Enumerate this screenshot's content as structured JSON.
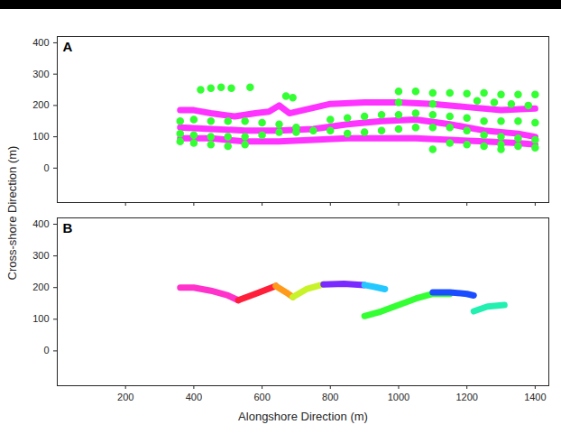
{
  "chart_data": [
    {
      "type": "line",
      "title": "A",
      "tick_labels": "y",
      "ylabel": "Cross-shore Direction (m)",
      "xlim": [
        0,
        1440
      ],
      "ylim": [
        -110,
        420
      ],
      "xticks": [
        200,
        400,
        600,
        800,
        1000,
        1200,
        1400
      ],
      "yticks": [
        0,
        100,
        200,
        300,
        400
      ],
      "grid": false,
      "series": [
        {
          "type": "line",
          "color": "#ff33ff",
          "line_style": "solid",
          "x": [
            360,
            400,
            450,
            520,
            580,
            620,
            650,
            680,
            720,
            800,
            900,
            1000,
            1100,
            1200,
            1300,
            1400
          ],
          "values": [
            185,
            185,
            175,
            165,
            175,
            180,
            200,
            175,
            185,
            205,
            210,
            210,
            205,
            195,
            185,
            190
          ]
        },
        {
          "type": "line",
          "color": "#ff33ff",
          "line_style": "solid",
          "x": [
            360,
            450,
            550,
            650,
            750,
            850,
            950,
            1050,
            1150,
            1250,
            1350,
            1400
          ],
          "values": [
            130,
            125,
            120,
            120,
            125,
            140,
            150,
            155,
            140,
            120,
            110,
            100
          ]
        },
        {
          "type": "line",
          "color": "#ff33ff",
          "line_style": "solid",
          "x": [
            360,
            450,
            550,
            650,
            750,
            850,
            950,
            1050,
            1150,
            1250,
            1350,
            1400
          ],
          "values": [
            95,
            95,
            85,
            85,
            90,
            95,
            95,
            95,
            90,
            85,
            80,
            75
          ]
        },
        {
          "type": "scatter",
          "color": "#33ff33",
          "marker": "circle",
          "x": [
            420,
            450,
            480,
            510,
            565,
            670,
            690,
            1000,
            1050,
            1100,
            1150,
            1200,
            1250,
            1300,
            1350,
            1400,
            1000,
            1100,
            1230,
            1280,
            1330,
            1380,
            360,
            400,
            450,
            500,
            550,
            600,
            650,
            700,
            800,
            850,
            900,
            950,
            1000,
            1050,
            1100,
            1150,
            1200,
            1250,
            1300,
            1350,
            1400,
            360,
            400,
            450,
            500,
            550,
            600,
            650,
            700,
            750,
            800,
            850,
            900,
            950,
            1000,
            1050,
            1100,
            1150,
            1200,
            1250,
            1300,
            1350,
            1400,
            360,
            400,
            450,
            500,
            550,
            1150,
            1200,
            1250,
            1300,
            1350,
            1400,
            1100,
            1300
          ],
          "values": [
            250,
            255,
            258,
            255,
            258,
            230,
            225,
            245,
            245,
            240,
            240,
            238,
            240,
            235,
            235,
            235,
            210,
            205,
            215,
            210,
            205,
            200,
            150,
            155,
            150,
            150,
            150,
            145,
            140,
            130,
            155,
            160,
            165,
            170,
            170,
            175,
            170,
            165,
            160,
            150,
            150,
            150,
            145,
            110,
            105,
            100,
            100,
            100,
            105,
            115,
            115,
            120,
            120,
            110,
            115,
            120,
            125,
            130,
            130,
            130,
            120,
            105,
            100,
            95,
            90,
            85,
            80,
            75,
            70,
            75,
            80,
            75,
            70,
            75,
            70,
            65,
            60,
            60
          ]
        }
      ]
    },
    {
      "type": "line",
      "title": "B",
      "xlabel": "Alongshore Direction (m)",
      "xlim": [
        0,
        1440
      ],
      "ylim": [
        -110,
        420
      ],
      "xticks": [
        200,
        400,
        600,
        800,
        1000,
        1200,
        1400
      ],
      "yticks": [
        0,
        100,
        200,
        300,
        400
      ],
      "grid": false,
      "series": [
        {
          "type": "line",
          "color": "#ff33cc",
          "x": [
            360,
            400,
            450,
            500,
            530
          ],
          "values": [
            200,
            200,
            190,
            175,
            160
          ]
        },
        {
          "type": "line",
          "color": "#ff1f3a",
          "x": [
            530,
            580,
            640
          ],
          "values": [
            160,
            180,
            205
          ]
        },
        {
          "type": "line",
          "color": "#ff9a1a",
          "x": [
            640,
            670,
            690
          ],
          "values": [
            205,
            185,
            170
          ]
        },
        {
          "type": "line",
          "color": "#c8f22a",
          "x": [
            690,
            730,
            780
          ],
          "values": [
            170,
            195,
            210
          ]
        },
        {
          "type": "line",
          "color": "#7a2aff",
          "x": [
            780,
            840,
            900
          ],
          "values": [
            210,
            212,
            208
          ]
        },
        {
          "type": "line",
          "color": "#22c8ff",
          "x": [
            900,
            930,
            960
          ],
          "values": [
            208,
            202,
            195
          ]
        },
        {
          "type": "line",
          "color": "#33ff33",
          "x": [
            900,
            950,
            1000,
            1050,
            1100,
            1150
          ],
          "values": [
            110,
            125,
            145,
            165,
            180,
            180
          ]
        },
        {
          "type": "line",
          "color": "#1a4dff",
          "x": [
            1100,
            1150,
            1200,
            1220
          ],
          "values": [
            185,
            185,
            180,
            175
          ]
        },
        {
          "type": "line",
          "color": "#22f0b0",
          "x": [
            1220,
            1260,
            1310
          ],
          "values": [
            125,
            140,
            145
          ]
        }
      ]
    }
  ]
}
